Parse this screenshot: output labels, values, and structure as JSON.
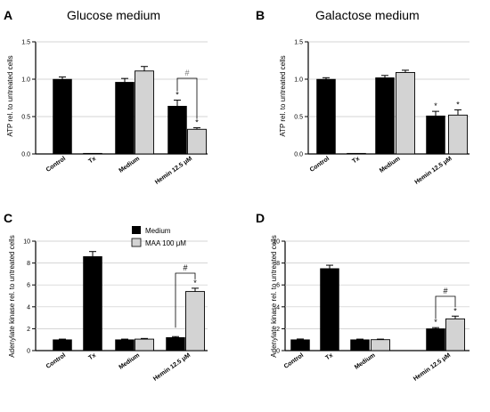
{
  "chart_data": [
    {
      "type": "bar",
      "panel_label": "A",
      "title": "Glucose medium",
      "ylabel": "ATP rel. to untreated cells",
      "ylim": [
        0,
        1.5
      ],
      "yticks": [
        "0.0",
        "0.5",
        "1.0",
        "1.5"
      ],
      "categories": [
        "Control",
        "Tx",
        "Medium",
        "Hemin 12.5 μM"
      ],
      "series": [
        {
          "name": "Medium",
          "color": "#000000",
          "values": [
            1.0,
            0.0,
            0.96,
            0.64
          ],
          "errors": [
            0.03,
            0.0,
            0.05,
            0.08
          ]
        },
        {
          "name": "MAA 100 μM",
          "color": "#d3d3d3",
          "values": [
            null,
            null,
            1.11,
            0.33
          ],
          "errors": [
            null,
            null,
            0.06,
            0.02
          ]
        }
      ],
      "stars": [
        "*",
        "*"
      ],
      "bracket": "#"
    },
    {
      "type": "bar",
      "panel_label": "B",
      "title": "Galactose medium",
      "ylabel": "ATP rel. to untreated cells",
      "ylim": [
        0,
        1.5
      ],
      "yticks": [
        "0.0",
        "0.5",
        "1.0",
        "1.5"
      ],
      "categories": [
        "Control",
        "Tx",
        "Medium",
        "Hemin 12.5 μM"
      ],
      "series": [
        {
          "name": "Medium",
          "color": "#000000",
          "values": [
            1.0,
            0.0,
            1.02,
            0.51
          ],
          "errors": [
            0.02,
            0.0,
            0.03,
            0.06
          ]
        },
        {
          "name": "MAA 100 μM",
          "color": "#d3d3d3",
          "values": [
            null,
            null,
            1.09,
            0.52
          ],
          "errors": [
            null,
            null,
            0.03,
            0.07
          ]
        }
      ],
      "stars": [
        "*",
        "*"
      ]
    },
    {
      "type": "bar",
      "panel_label": "C",
      "ylabel": "Adenylate kinase rel. to untreated cells",
      "ylim": [
        0,
        10
      ],
      "yticks": [
        "0",
        "2",
        "4",
        "6",
        "8",
        "10"
      ],
      "categories": [
        "Control",
        "Tx",
        "Medium",
        "Hemin 12.5 μM"
      ],
      "series": [
        {
          "name": "Medium",
          "color": "#000000",
          "values": [
            1.0,
            8.6,
            1.0,
            1.2
          ],
          "errors": [
            0.05,
            0.45,
            0.05,
            0.08
          ]
        },
        {
          "name": "MAA 100 μM",
          "color": "#d3d3d3",
          "values": [
            null,
            null,
            1.05,
            5.4
          ],
          "errors": [
            null,
            null,
            0.06,
            0.3
          ]
        }
      ],
      "stars": [
        "*"
      ],
      "bracket": "#",
      "legend": [
        "Medium",
        "MAA 100 μM"
      ]
    },
    {
      "type": "bar",
      "panel_label": "D",
      "ylabel": "Adenylate kinase rel. to untreated cells",
      "ylim": [
        0,
        10
      ],
      "yticks": [
        "0",
        "2",
        "4",
        "6",
        "8",
        "10"
      ],
      "categories": [
        "Control",
        "Tx",
        "Medium",
        "Hemin 12.5 μM"
      ],
      "series": [
        {
          "name": "Medium",
          "color": "#000000",
          "values": [
            1.0,
            7.5,
            1.0,
            2.0
          ],
          "errors": [
            0.06,
            0.3,
            0.05,
            0.1
          ]
        },
        {
          "name": "MAA 100 μM",
          "color": "#d3d3d3",
          "values": [
            null,
            null,
            1.0,
            2.9
          ],
          "errors": [
            null,
            null,
            0.05,
            0.25
          ]
        }
      ],
      "stars": [
        "*",
        "*"
      ],
      "bracket": "#"
    }
  ]
}
